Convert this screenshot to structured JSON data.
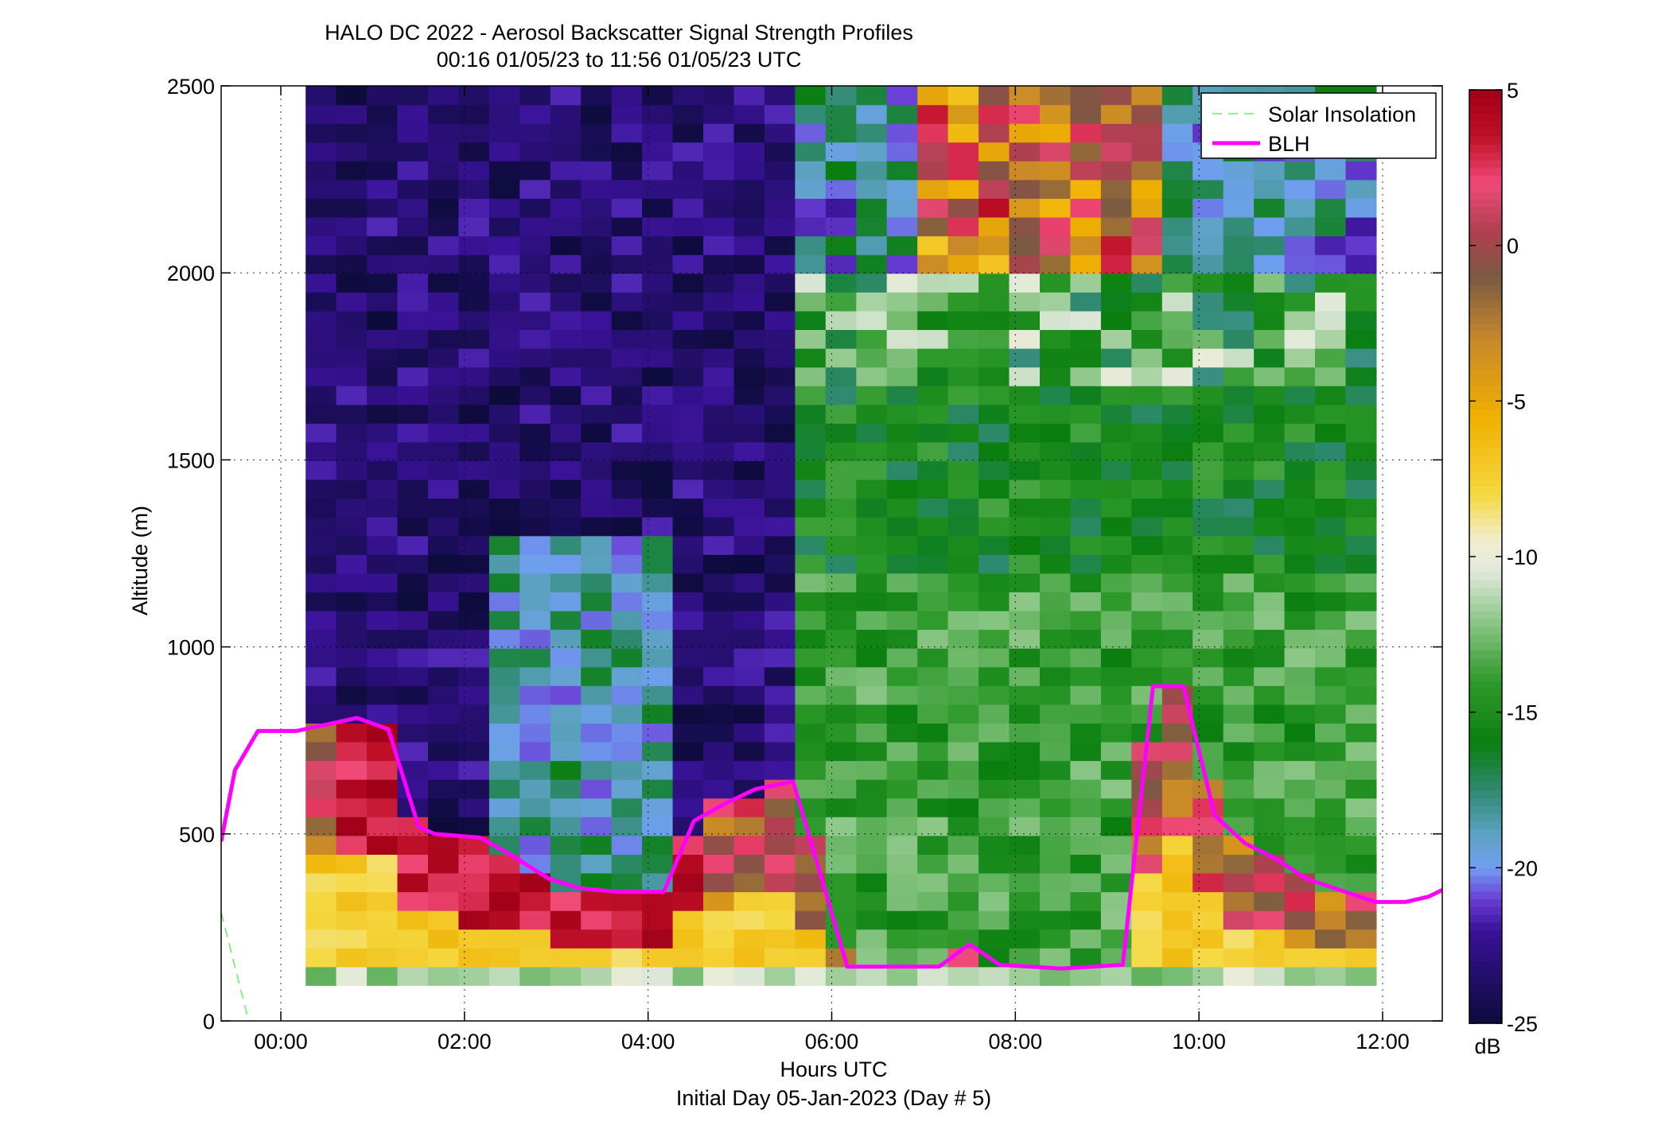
{
  "chart_data": {
    "type": "heatmap",
    "title": "HALO DC 2022 - Aerosol Backscatter Signal Strength Profiles",
    "subtitle": "00:16 01/05/23 to 11:56 01/05/23  UTC",
    "xlabel": "Hours UTC",
    "xlabel2": "Initial Day 05-Jan-2023 (Day # 5)",
    "ylabel": "Altitude (m)",
    "colorbar_label": "dB",
    "xlim": [
      -0.65,
      12.65
    ],
    "ylim": [
      0,
      2500
    ],
    "x_ticks": [
      0,
      2,
      4,
      6,
      8,
      10,
      12
    ],
    "x_tick_labels": [
      "00:00",
      "02:00",
      "04:00",
      "06:00",
      "08:00",
      "10:00",
      "12:00"
    ],
    "y_ticks": [
      0,
      500,
      1000,
      1500,
      2000,
      2500
    ],
    "y_tick_labels": [
      "0",
      "500",
      "1000",
      "1500",
      "2000",
      "2500"
    ],
    "clim": [
      -25,
      5
    ],
    "cbar_ticks": [
      5,
      0,
      -5,
      -10,
      -15,
      -20,
      -25
    ],
    "cbar_tick_labels": [
      "5",
      "0",
      "-5",
      "-10",
      "-15",
      "-20",
      "-25"
    ],
    "colorscale": [
      [
        -25,
        "#0c0b3a"
      ],
      [
        -22,
        "#3a1298"
      ],
      [
        -21,
        "#6a3ed6"
      ],
      [
        -20,
        "#6f9ef0"
      ],
      [
        -19,
        "#5fa3c8"
      ],
      [
        -17.5,
        "#2f8a70"
      ],
      [
        -16,
        "#0a7f10"
      ],
      [
        -14,
        "#2f9a2c"
      ],
      [
        -12,
        "#8fc88a"
      ],
      [
        -10.5,
        "#dfe8da"
      ],
      [
        -9.5,
        "#f2eed2"
      ],
      [
        -8,
        "#f5d840"
      ],
      [
        -5.5,
        "#f0b000"
      ],
      [
        -3,
        "#c8882a"
      ],
      [
        -1,
        "#7a5a42"
      ],
      [
        0.5,
        "#b04050"
      ],
      [
        2,
        "#f04a78"
      ],
      [
        3.5,
        "#c01028"
      ],
      [
        5,
        "#a00018"
      ]
    ],
    "grid": true,
    "time_range": [
      0.27,
      11.93
    ],
    "gate_bottom": 95,
    "gate_top": 2500,
    "legend_position": "top-right",
    "legend": [
      {
        "name": "Solar Insolation",
        "color": "#66ee66",
        "style": "dashed"
      },
      {
        "name": "BLH",
        "color": "#ff00ff",
        "style": "solid"
      }
    ],
    "series": [
      {
        "name": "BLH",
        "color": "#ff00ff",
        "x": [
          -0.65,
          -0.5,
          -0.25,
          0.17,
          0.83,
          1.17,
          1.5,
          1.67,
          2.17,
          2.5,
          2.92,
          3.25,
          3.67,
          4.17,
          4.5,
          4.83,
          5.17,
          5.58,
          6.17,
          6.58,
          7.17,
          7.5,
          7.83,
          8.5,
          9.17,
          9.5,
          9.83,
          10.17,
          10.5,
          10.83,
          11.17,
          11.92,
          12.25,
          12.5,
          12.65
        ],
        "y": [
          480,
          670,
          775,
          775,
          810,
          780,
          520,
          500,
          490,
          445,
          380,
          355,
          345,
          345,
          535,
          580,
          620,
          640,
          145,
          145,
          145,
          205,
          150,
          140,
          150,
          895,
          895,
          550,
          475,
          435,
          380,
          318,
          318,
          332,
          350
        ]
      },
      {
        "name": "Solar Insolation",
        "color": "#66ee66",
        "x": [
          -0.65,
          -0.35
        ],
        "y": [
          290,
          0
        ]
      }
    ]
  }
}
